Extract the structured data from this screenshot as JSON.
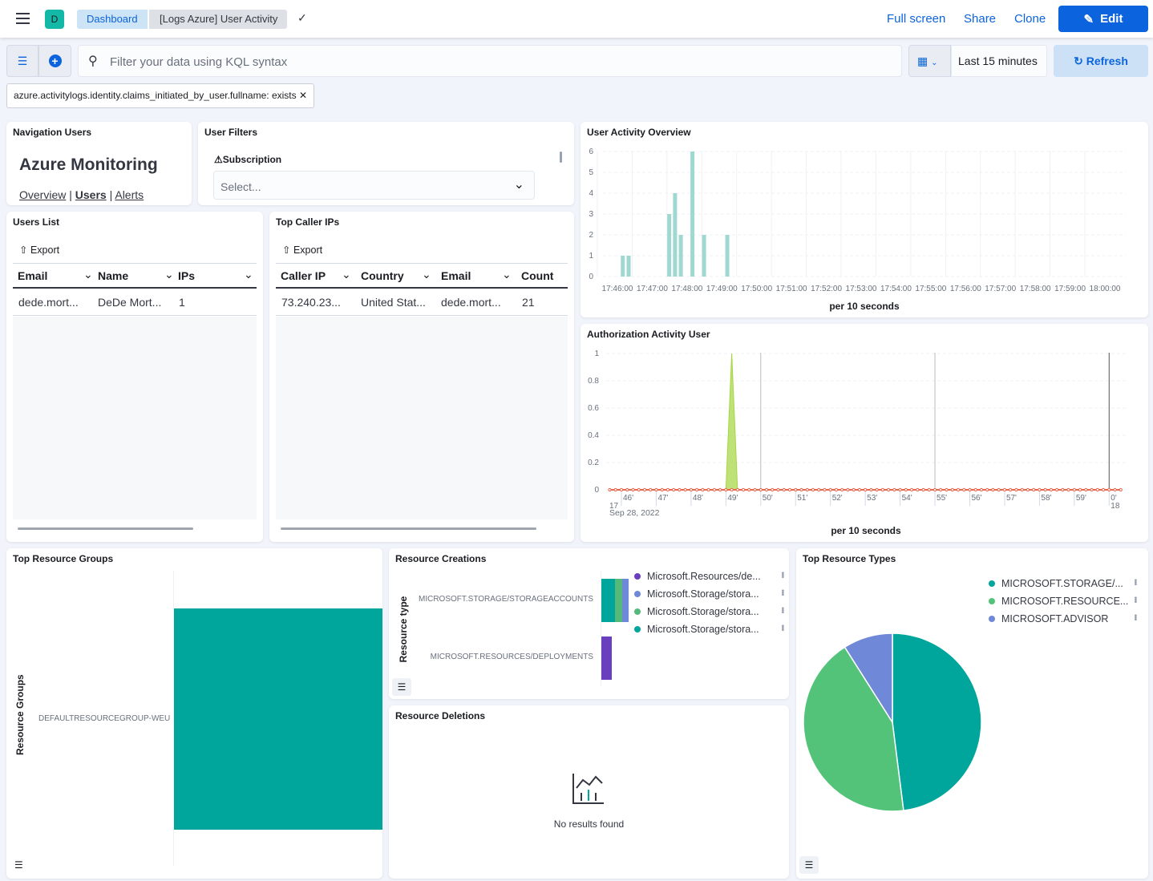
{
  "header": {
    "app_initial": "D",
    "breadcrumbs": [
      "Dashboard",
      "[Logs Azure] User Activity"
    ],
    "links": [
      "Full screen",
      "Share",
      "Clone"
    ],
    "edit_label": "Edit",
    "accent": "#0b64dd"
  },
  "query": {
    "placeholder": "Filter your data using KQL syntax",
    "time_range": "Last 15 minutes",
    "refresh_label": "Refresh",
    "filter_pill": "azure.activitylogs.identity.claims_initiated_by_user.fullname: exists"
  },
  "nav_panel": {
    "title": "Navigation Users",
    "heading": "Azure Monitoring",
    "links": [
      "Overview",
      "Users",
      "Alerts"
    ]
  },
  "filters_panel": {
    "title": "User Filters",
    "label": "Subscription",
    "placeholder": "Select..."
  },
  "users_list": {
    "title": "Users List",
    "export": "Export",
    "columns": [
      "Email",
      "Name",
      "IPs"
    ],
    "rows": [
      [
        "dede.mort...",
        "DeDe Mort...",
        "1"
      ]
    ]
  },
  "caller_ips": {
    "title": "Top Caller IPs",
    "export": "Export",
    "columns": [
      "Caller IP",
      "Country",
      "Email",
      "Count"
    ],
    "rows": [
      [
        "73.240.23...",
        "United Stat...",
        "dede.mort...",
        "21"
      ]
    ]
  },
  "chart_data": [
    {
      "id": "user-activity",
      "type": "bar",
      "title": "User Activity Overview",
      "xlabel": "per 10 seconds",
      "x_ticks": [
        "17:46:00",
        "17:47:00",
        "17:48:00",
        "17:49:00",
        "17:50:00",
        "17:51:00",
        "17:52:00",
        "17:53:00",
        "17:54:00",
        "17:55:00",
        "17:56:00",
        "17:57:00",
        "17:58:00",
        "17:59:00",
        "18:00:00"
      ],
      "y_ticks": [
        0,
        1,
        2,
        3,
        4,
        5,
        6
      ],
      "ylim": [
        0,
        6
      ],
      "color": "#9fd8d0",
      "x": [
        "17:46:10",
        "17:46:20",
        "17:47:30",
        "17:47:40",
        "17:47:50",
        "17:48:10",
        "17:48:30",
        "17:49:10"
      ],
      "values": [
        1,
        1,
        3,
        4,
        2,
        6,
        2,
        2
      ]
    },
    {
      "id": "authorization",
      "type": "area",
      "title": "Authorization Activity User",
      "xlabel": "per 10 seconds",
      "date_label": "Sep 28, 2022",
      "x_ticks": [
        "46'",
        "47'",
        "48'",
        "49'",
        "50'",
        "51'",
        "52'",
        "53'",
        "54'",
        "55'",
        "56'",
        "57'",
        "58'",
        "59'",
        "0'"
      ],
      "hour_labels": [
        "17",
        "18"
      ],
      "y_ticks": [
        "0",
        "0.2",
        "0.4",
        "0.6",
        "0.8",
        "1"
      ],
      "ylim": [
        0,
        1
      ],
      "series": [
        {
          "color": "#a4d63e",
          "x": [
            "17:49:00",
            "17:49:10",
            "17:49:20"
          ],
          "values": [
            0,
            1,
            0
          ]
        },
        {
          "color": "#e7664c",
          "constant": 0,
          "xrange": [
            "17:45:40",
            "18:00:20"
          ]
        }
      ],
      "markers": [
        "17:50:00",
        "17:55:00",
        "18:00:00"
      ]
    },
    {
      "id": "resource-groups",
      "type": "bar",
      "orientation": "horizontal",
      "title": "Top Resource Groups",
      "ylabel": "Resource Groups",
      "categories": [
        "DEFAULTRESOURCEGROUP-WEU"
      ],
      "values": [
        1
      ],
      "color": "#00a69b"
    },
    {
      "id": "resource-creations",
      "type": "bar",
      "orientation": "horizontal",
      "stacked": true,
      "title": "Resource Creations",
      "ylabel": "Resource type",
      "categories": [
        "MICROSOFT.STORAGE/STORAGEACCOUNTS",
        "MICROSOFT.RESOURCES/DEPLOYMENTS"
      ],
      "series": [
        {
          "name": "Microsoft.Resources/de...",
          "color": "#6a3fbf",
          "values": [
            0,
            1
          ]
        },
        {
          "name": "Microsoft.Storage/stora...",
          "color": "#7088d8",
          "values": [
            1,
            0
          ]
        },
        {
          "name": "Microsoft.Storage/stora...",
          "color": "#54b979",
          "values": [
            1,
            0
          ]
        },
        {
          "name": "Microsoft.Storage/stora...",
          "color": "#00a69b",
          "values": [
            2,
            0
          ]
        }
      ],
      "legend": "right"
    },
    {
      "id": "resource-types",
      "type": "pie",
      "title": "Top Resource Types",
      "slices": [
        {
          "name": "MICROSOFT.STORAGE/...",
          "value": 48,
          "color": "#00a69b"
        },
        {
          "name": "MICROSOFT.RESOURCE...",
          "value": 43,
          "color": "#54c37a"
        },
        {
          "name": "MICROSOFT.ADVISOR",
          "value": 9,
          "color": "#7088d8"
        }
      ],
      "legend": "top-right"
    }
  ],
  "deletions": {
    "title": "Resource Deletions",
    "empty": "No results found"
  }
}
